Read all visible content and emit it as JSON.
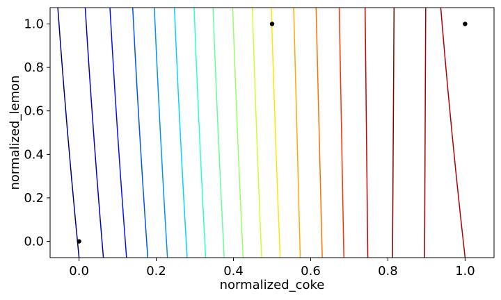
{
  "chart_data": {
    "type": "contour",
    "title": "",
    "xlabel": "normalized_coke",
    "ylabel": "normalized_lemon",
    "xlim": [
      -0.075,
      1.075
    ],
    "ylim": [
      -0.075,
      1.075
    ],
    "xticks": [
      0.0,
      0.2,
      0.4,
      0.6,
      0.8,
      1.0
    ],
    "xtick_labels": [
      "0.0",
      "0.2",
      "0.4",
      "0.6",
      "0.8",
      "1.0"
    ],
    "yticks": [
      0.0,
      0.2,
      0.4,
      0.6,
      0.8,
      1.0
    ],
    "ytick_labels": [
      "0.0",
      "0.2",
      "0.4",
      "0.6",
      "0.8",
      "1.0"
    ],
    "grid": false,
    "colormap": "jet",
    "contour_lines": [
      {
        "color": "#00007f",
        "x_at_top": -0.055,
        "x_at_bottom": 0.0
      },
      {
        "color": "#0000c8",
        "x_at_top": 0.016,
        "x_at_bottom": 0.063
      },
      {
        "color": "#0010ff",
        "x_at_top": 0.08,
        "x_at_bottom": 0.123
      },
      {
        "color": "#0050ff",
        "x_at_top": 0.139,
        "x_at_bottom": 0.178
      },
      {
        "color": "#0090ff",
        "x_at_top": 0.195,
        "x_at_bottom": 0.229
      },
      {
        "color": "#00d4ff",
        "x_at_top": 0.247,
        "x_at_bottom": 0.28
      },
      {
        "color": "#29ffce",
        "x_at_top": 0.298,
        "x_at_bottom": 0.328
      },
      {
        "color": "#60ff97",
        "x_at_top": 0.347,
        "x_at_bottom": 0.376
      },
      {
        "color": "#97ff60",
        "x_at_top": 0.398,
        "x_at_bottom": 0.425
      },
      {
        "color": "#ceff29",
        "x_at_top": 0.449,
        "x_at_bottom": 0.473
      },
      {
        "color": "#ffe600",
        "x_at_top": 0.498,
        "x_at_bottom": 0.521
      },
      {
        "color": "#ffaa00",
        "x_at_top": 0.556,
        "x_at_bottom": 0.573
      },
      {
        "color": "#ff6f00",
        "x_at_top": 0.614,
        "x_at_bottom": 0.63
      },
      {
        "color": "#ff3000",
        "x_at_top": 0.674,
        "x_at_bottom": 0.686
      },
      {
        "color": "#c80000",
        "x_at_top": 0.741,
        "x_at_bottom": 0.748
      },
      {
        "color": "#7f0000",
        "x_at_top": 0.816,
        "x_at_bottom": 0.812
      },
      {
        "color": "#a00000",
        "x_at_top": 0.898,
        "x_at_bottom": 0.895
      },
      {
        "color": "#b00000",
        "x_at_top": 0.937,
        "x_at_bottom": 1.0
      }
    ],
    "points": [
      {
        "x": 0.0,
        "y": 0.0
      },
      {
        "x": 0.5,
        "y": 1.0
      },
      {
        "x": 1.0,
        "y": 1.0
      }
    ],
    "point_color": "#000000"
  }
}
